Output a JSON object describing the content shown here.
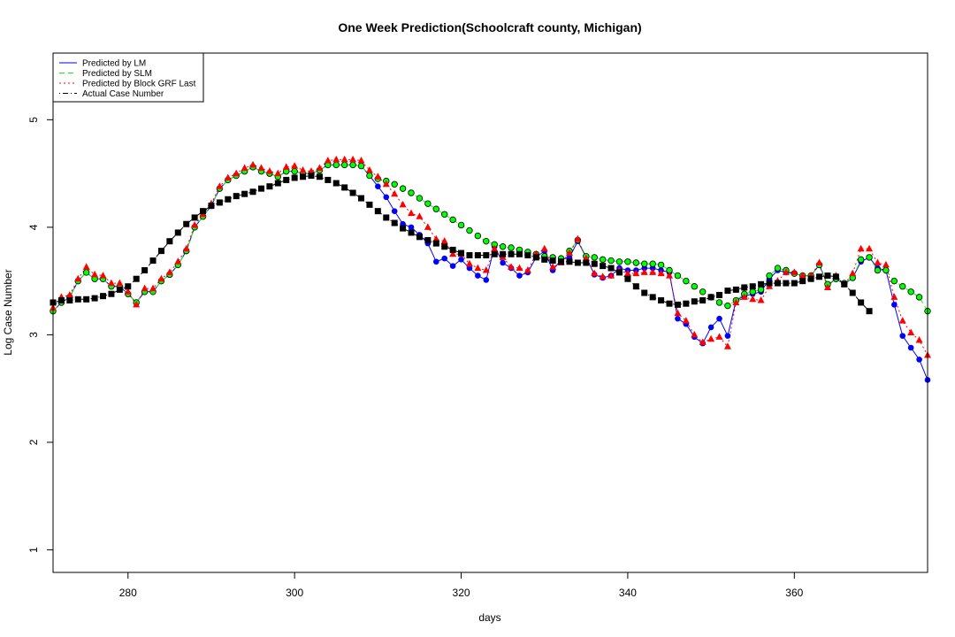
{
  "chart_data": {
    "type": "line",
    "title": "One Week Prediction(Schoolcraft county, Michigan)",
    "x_label": "days",
    "y_label": "Log Case Number",
    "x": [
      271,
      272,
      273,
      274,
      275,
      276,
      277,
      278,
      279,
      280,
      281,
      282,
      283,
      284,
      285,
      286,
      287,
      288,
      289,
      290,
      291,
      292,
      293,
      294,
      295,
      296,
      297,
      298,
      299,
      300,
      301,
      302,
      303,
      304,
      305,
      306,
      307,
      308,
      309,
      310,
      311,
      312,
      313,
      314,
      315,
      316,
      317,
      318,
      319,
      320,
      321,
      322,
      323,
      324,
      325,
      326,
      327,
      328,
      329,
      330,
      331,
      332,
      333,
      334,
      335,
      336,
      337,
      338,
      339,
      340,
      341,
      342,
      343,
      344,
      345,
      346,
      347,
      348,
      349,
      350,
      351,
      352,
      353,
      354,
      355,
      356,
      357,
      358,
      359,
      360,
      361,
      362,
      363,
      364,
      365,
      366,
      367,
      368,
      369,
      370,
      371,
      372,
      373,
      374,
      375,
      376
    ],
    "xlim": [
      271,
      376
    ],
    "xticks": [
      280,
      300,
      320,
      340,
      360
    ],
    "ylim": [
      0.79,
      5.62
    ],
    "yticks": [
      1,
      2,
      3,
      4,
      5
    ],
    "grid": false,
    "legend_position": "top-left",
    "series": [
      {
        "name": "Predicted by LM",
        "color": "#0000ff",
        "line_style": "solid",
        "marker": "circle",
        "values": [
          3.22,
          3.3,
          3.35,
          3.5,
          3.58,
          3.52,
          3.52,
          3.45,
          3.45,
          3.38,
          3.3,
          3.4,
          3.4,
          3.5,
          3.56,
          3.65,
          3.78,
          4.0,
          4.1,
          4.2,
          4.36,
          4.44,
          4.48,
          4.52,
          4.56,
          4.52,
          4.5,
          4.47,
          4.52,
          4.52,
          4.5,
          4.5,
          4.53,
          4.58,
          4.58,
          4.58,
          4.58,
          4.57,
          4.48,
          4.38,
          4.28,
          4.15,
          4.03,
          4.0,
          3.93,
          3.85,
          3.68,
          3.71,
          3.64,
          3.7,
          3.62,
          3.55,
          3.51,
          3.82,
          3.67,
          3.62,
          3.55,
          3.58,
          3.72,
          3.78,
          3.6,
          3.7,
          3.72,
          3.87,
          3.72,
          3.56,
          3.53,
          3.55,
          3.62,
          3.6,
          3.6,
          3.62,
          3.62,
          3.6,
          3.58,
          3.15,
          3.1,
          2.98,
          2.92,
          3.07,
          3.15,
          2.99,
          3.32,
          3.36,
          3.38,
          3.4,
          3.52,
          3.6,
          3.58,
          3.57,
          3.55,
          3.55,
          3.65,
          3.46,
          3.52,
          3.47,
          3.53,
          3.68,
          3.72,
          3.62,
          3.6,
          3.28,
          2.99,
          2.88,
          2.77,
          2.58
        ]
      },
      {
        "name": "Predicted by SLM",
        "color": "#00ff00",
        "line_style": "dashed",
        "marker": "circle-outlined",
        "values": [
          3.22,
          3.3,
          3.35,
          3.5,
          3.58,
          3.52,
          3.52,
          3.45,
          3.45,
          3.38,
          3.3,
          3.4,
          3.4,
          3.5,
          3.56,
          3.65,
          3.78,
          4.0,
          4.1,
          4.2,
          4.36,
          4.44,
          4.48,
          4.52,
          4.56,
          4.52,
          4.5,
          4.47,
          4.52,
          4.52,
          4.5,
          4.5,
          4.53,
          4.58,
          4.58,
          4.58,
          4.58,
          4.57,
          4.48,
          4.45,
          4.43,
          4.4,
          4.36,
          4.32,
          4.27,
          4.22,
          4.17,
          4.12,
          4.07,
          4.02,
          3.97,
          3.92,
          3.87,
          3.84,
          3.82,
          3.81,
          3.79,
          3.77,
          3.75,
          3.73,
          3.72,
          3.71,
          3.78,
          3.88,
          3.73,
          3.72,
          3.7,
          3.69,
          3.68,
          3.68,
          3.67,
          3.66,
          3.66,
          3.65,
          3.6,
          3.55,
          3.5,
          3.45,
          3.4,
          3.35,
          3.3,
          3.27,
          3.32,
          3.38,
          3.4,
          3.42,
          3.55,
          3.62,
          3.6,
          3.57,
          3.55,
          3.55,
          3.65,
          3.47,
          3.52,
          3.48,
          3.53,
          3.7,
          3.72,
          3.6,
          3.6,
          3.5,
          3.45,
          3.4,
          3.35,
          3.22
        ]
      },
      {
        "name": "Predicted by Block GRF Last",
        "color": "#ff0000",
        "line_style": "dotted",
        "marker": "triangle",
        "values": [
          3.25,
          3.35,
          3.37,
          3.52,
          3.63,
          3.56,
          3.55,
          3.48,
          3.48,
          3.4,
          3.28,
          3.43,
          3.43,
          3.52,
          3.58,
          3.68,
          3.8,
          4.02,
          4.12,
          4.22,
          4.38,
          4.46,
          4.5,
          4.55,
          4.58,
          4.55,
          4.52,
          4.5,
          4.56,
          4.57,
          4.53,
          4.52,
          4.55,
          4.62,
          4.63,
          4.63,
          4.63,
          4.62,
          4.53,
          4.47,
          4.4,
          4.31,
          4.21,
          4.13,
          4.1,
          4.0,
          3.89,
          3.87,
          3.75,
          3.75,
          3.66,
          3.62,
          3.6,
          3.8,
          3.72,
          3.63,
          3.62,
          3.6,
          3.75,
          3.8,
          3.63,
          3.67,
          3.76,
          3.89,
          3.71,
          3.57,
          3.54,
          3.55,
          3.6,
          3.57,
          3.57,
          3.58,
          3.58,
          3.57,
          3.55,
          3.2,
          3.13,
          3.0,
          2.93,
          2.96,
          2.98,
          2.89,
          3.3,
          3.35,
          3.33,
          3.32,
          3.45,
          3.5,
          3.58,
          3.58,
          3.55,
          3.55,
          3.67,
          3.44,
          3.55,
          3.47,
          3.57,
          3.8,
          3.8,
          3.67,
          3.65,
          3.35,
          3.13,
          3.02,
          2.95,
          2.81
        ]
      },
      {
        "name": "Actual Case Number",
        "color": "#000000",
        "line_style": "dotdash",
        "marker": "square",
        "values": [
          3.3,
          3.32,
          3.32,
          3.33,
          3.33,
          3.34,
          3.36,
          3.38,
          3.42,
          3.45,
          3.52,
          3.6,
          3.69,
          3.78,
          3.87,
          3.95,
          4.03,
          4.09,
          4.15,
          4.2,
          4.23,
          4.26,
          4.29,
          4.31,
          4.33,
          4.36,
          4.38,
          4.41,
          4.44,
          4.46,
          4.47,
          4.48,
          4.47,
          4.44,
          4.41,
          4.37,
          4.32,
          4.27,
          4.21,
          4.15,
          4.09,
          4.04,
          3.99,
          3.95,
          3.91,
          3.88,
          3.85,
          3.82,
          3.79,
          3.76,
          3.74,
          3.74,
          3.74,
          3.75,
          3.75,
          3.75,
          3.75,
          3.74,
          3.72,
          3.7,
          3.69,
          3.68,
          3.68,
          3.67,
          3.67,
          3.66,
          3.64,
          3.62,
          3.58,
          3.52,
          3.45,
          3.39,
          3.35,
          3.32,
          3.29,
          3.28,
          3.29,
          3.31,
          3.32,
          3.35,
          3.37,
          3.41,
          3.42,
          3.44,
          3.45,
          3.47,
          3.48,
          3.48,
          3.48,
          3.48,
          3.5,
          3.52,
          3.54,
          3.55,
          3.54,
          3.47,
          3.39,
          3.3,
          3.22,
          null,
          null,
          null,
          null,
          null,
          null,
          null
        ]
      }
    ]
  }
}
